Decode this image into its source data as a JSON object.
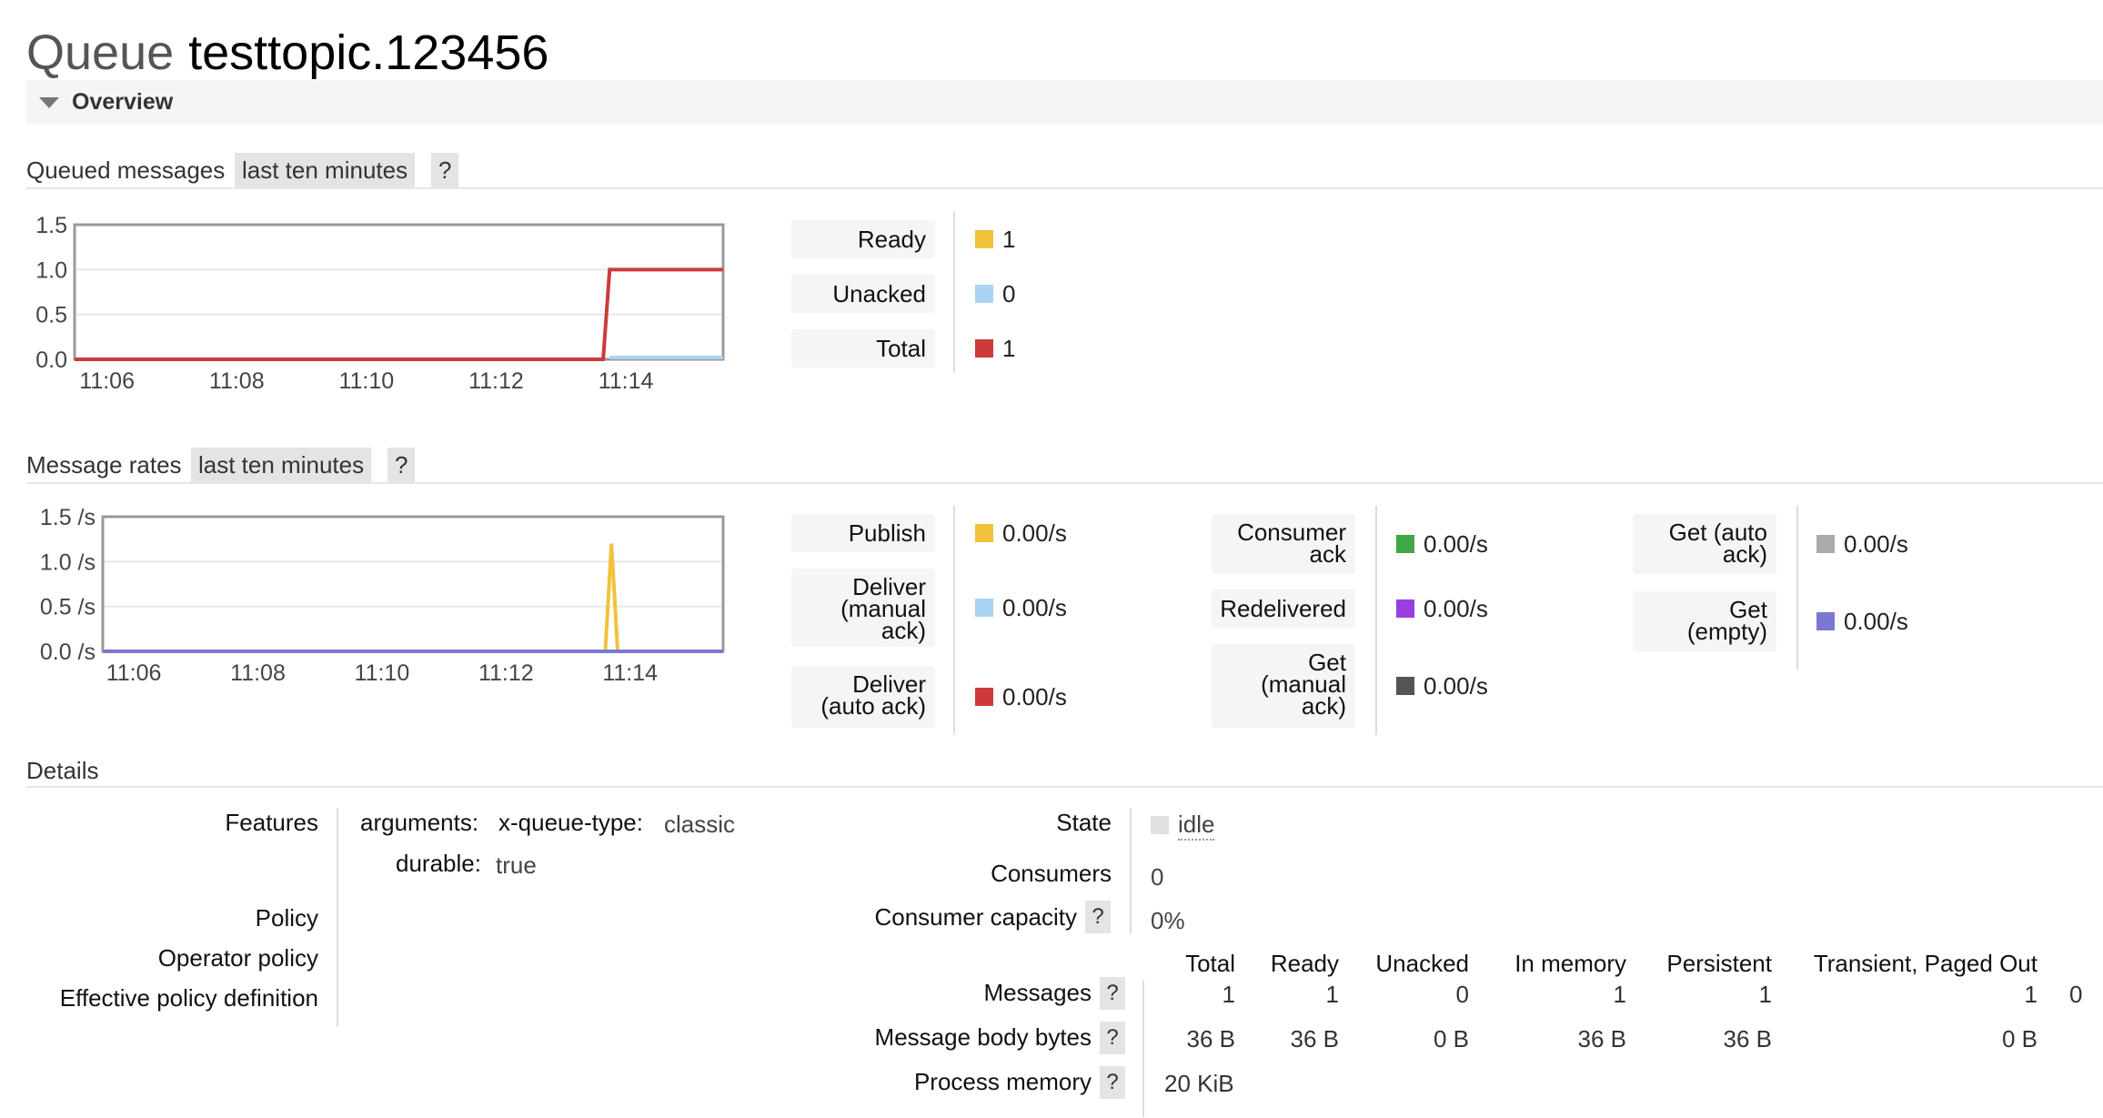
{
  "page": {
    "title_prefix": "Queue",
    "queue_name": "testtopic.123456"
  },
  "overview": {
    "label": "Overview"
  },
  "queued": {
    "title": "Queued messages",
    "range": "last ten minutes",
    "help": "?",
    "legend": [
      {
        "label": "Ready",
        "value": "1",
        "color": "#f0c23a"
      },
      {
        "label": "Unacked",
        "value": "0",
        "color": "#aad4f5"
      },
      {
        "label": "Total",
        "value": "1",
        "color": "#cc3b3b"
      }
    ]
  },
  "rates": {
    "title": "Message rates",
    "range": "last ten minutes",
    "help": "?",
    "col1": [
      {
        "label": "Publish",
        "value": "0.00/s",
        "color": "#f0c23a"
      },
      {
        "label": "Deliver\n(manual\nack)",
        "value": "0.00/s",
        "color": "#aad4f5"
      },
      {
        "label": "Deliver\n(auto ack)",
        "value": "0.00/s",
        "color": "#cc3b3b"
      }
    ],
    "col2": [
      {
        "label": "Consumer\nack",
        "value": "0.00/s",
        "color": "#3ea845"
      },
      {
        "label": "Redelivered",
        "value": "0.00/s",
        "color": "#9b3de0"
      },
      {
        "label": "Get\n(manual\nack)",
        "value": "0.00/s",
        "color": "#555555"
      }
    ],
    "col3": [
      {
        "label": "Get (auto\nack)",
        "value": "0.00/s",
        "color": "#aaaaaa"
      },
      {
        "label": "Get\n(empty)",
        "value": "0.00/s",
        "color": "#7a78d0"
      }
    ]
  },
  "chart_data": [
    {
      "type": "line",
      "title": "Queued messages",
      "x": [
        "11:05.5",
        "11:06",
        "11:08",
        "11:10",
        "11:12",
        "11:14",
        "11:14.1",
        "11:15.5"
      ],
      "xticks": [
        "11:06",
        "11:08",
        "11:10",
        "11:12",
        "11:14"
      ],
      "yticks": [
        "0.0",
        "0.5",
        "1.0",
        "1.5"
      ],
      "ylim": [
        0,
        1.5
      ],
      "series": [
        {
          "name": "Total",
          "color": "#cc3b3b",
          "points": [
            [
              0,
              0
            ],
            [
              8.15,
              0
            ],
            [
              8.25,
              1
            ],
            [
              10,
              1
            ]
          ]
        },
        {
          "name": "Unacked",
          "color": "#aad4f5",
          "points": [
            [
              8.25,
              0.02
            ],
            [
              10,
              0.02
            ]
          ]
        }
      ]
    },
    {
      "type": "line",
      "title": "Message rates",
      "xticks": [
        "11:06",
        "11:08",
        "11:10",
        "11:12",
        "11:14"
      ],
      "yticks": [
        "0.0 /s",
        "0.5 /s",
        "1.0 /s",
        "1.5 /s"
      ],
      "ylim": [
        0,
        1.5
      ],
      "series": [
        {
          "name": "Publish",
          "color": "#f0c23a",
          "points": [
            [
              0,
              0
            ],
            [
              8.1,
              0
            ],
            [
              8.2,
              1.2
            ],
            [
              8.3,
              0
            ],
            [
              10,
              0
            ]
          ]
        },
        {
          "name": "Get (empty)",
          "color": "#7a78d0",
          "points": [
            [
              0,
              0
            ],
            [
              10,
              0
            ]
          ]
        }
      ]
    }
  ],
  "details": {
    "title": "Details",
    "features_label": "Features",
    "arguments_label": "arguments:",
    "arg_key": "x-queue-type:",
    "arg_value": "classic",
    "durable_label": "durable:",
    "durable_value": "true",
    "policy_label": "Policy",
    "operator_policy_label": "Operator policy",
    "effective_policy_label": "Effective policy definition",
    "state_label": "State",
    "state_value": "idle",
    "consumers_label": "Consumers",
    "consumers_value": "0",
    "capacity_label": "Consumer capacity",
    "capacity_value": "0%",
    "help": "?",
    "table": {
      "headers": [
        "Total",
        "Ready",
        "Unacked",
        "In memory",
        "Persistent",
        "Transient, Paged Out"
      ],
      "rows": [
        {
          "label": "Messages",
          "cells": [
            "1",
            "1",
            "0",
            "1",
            "1",
            "1"
          ],
          "extra": "0"
        },
        {
          "label": "Message body bytes",
          "cells": [
            "36 B",
            "36 B",
            "0 B",
            "36 B",
            "36 B",
            "0 B"
          ]
        },
        {
          "label": "Process memory",
          "cells": [
            "20 KiB"
          ]
        }
      ]
    }
  }
}
